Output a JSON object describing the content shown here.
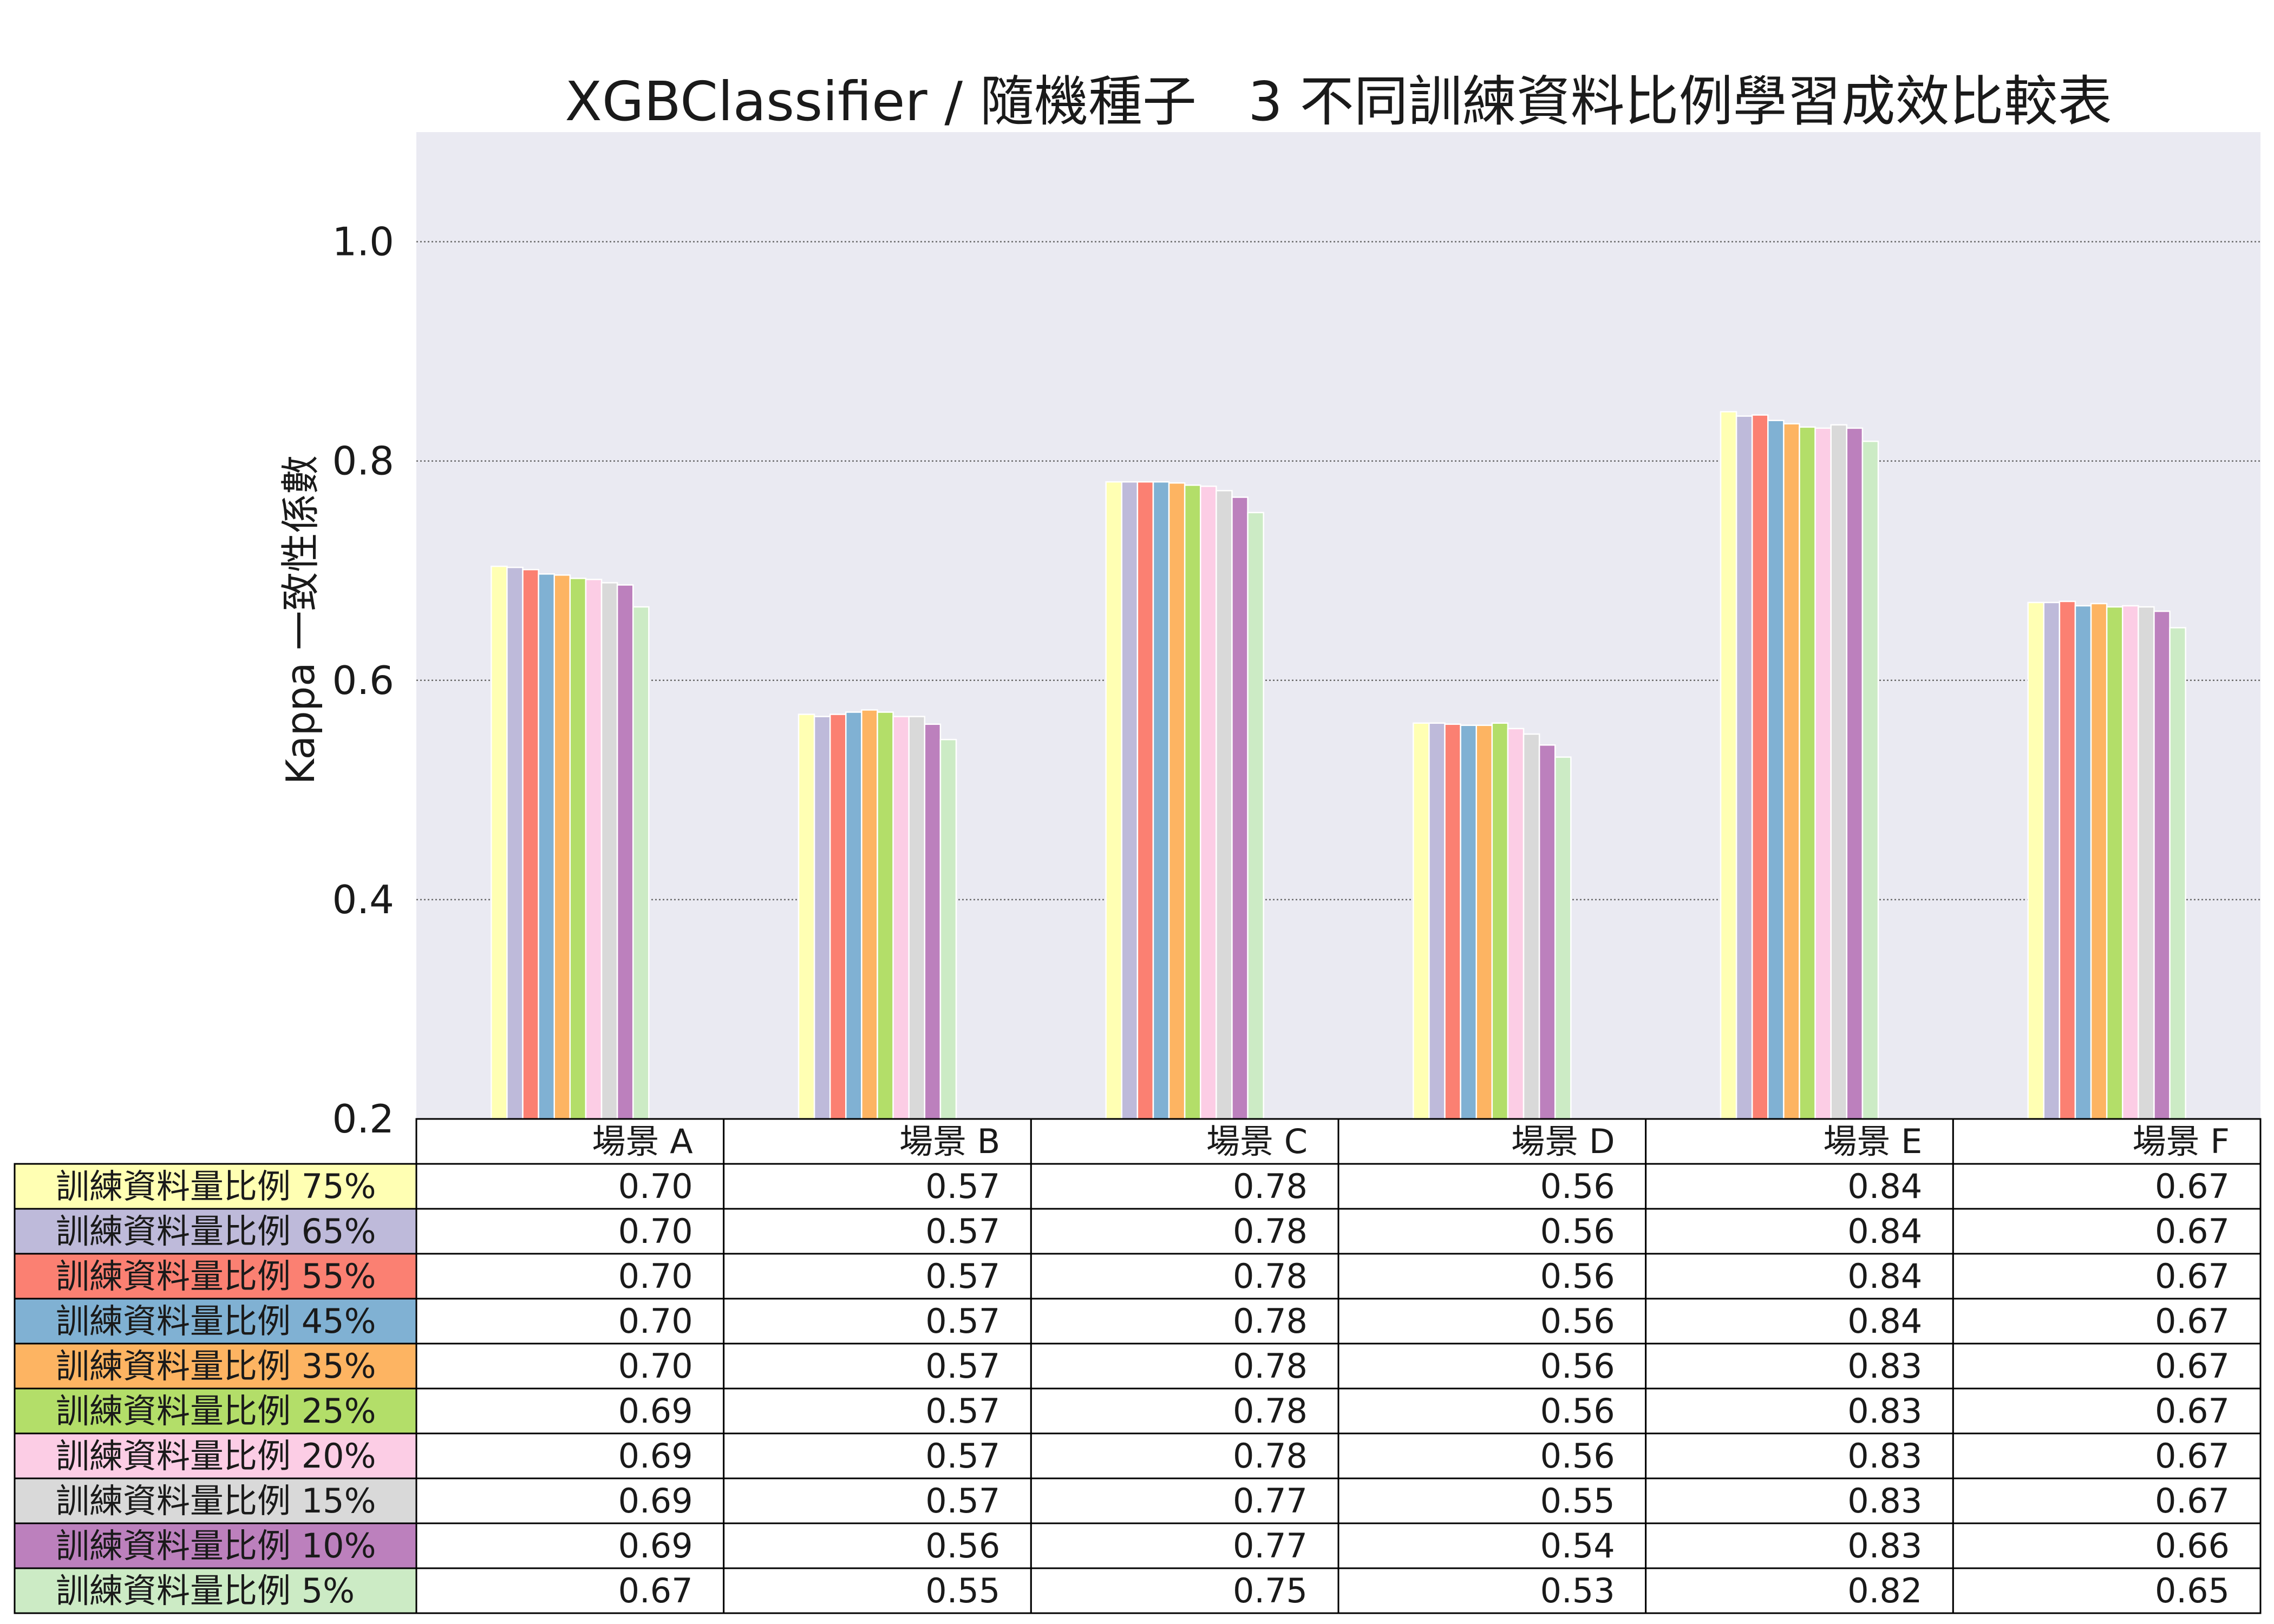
{
  "chart_data": {
    "type": "bar",
    "title": "XGBClassifier / 隨機種子   3 不同訓練資料比例學習成效比較表",
    "xlabel": "",
    "ylabel": "Kappa 一致性係數",
    "categories": [
      "場景 A",
      "場景 B",
      "場景 C",
      "場景 D",
      "場景 E",
      "場景 F"
    ],
    "ylim": [
      0.2,
      1.1
    ],
    "yticks": [
      0.2,
      0.4,
      0.6,
      0.8,
      1.0
    ],
    "ytick_labels": [
      "0.2",
      "0.4",
      "0.6",
      "0.8",
      "1.0"
    ],
    "grid": true,
    "legend": "bottom",
    "plot_background": "#eaeaf2",
    "series": [
      {
        "name": "訓練資料量比例 75%",
        "color": "#ffffb3",
        "values": [
          0.704,
          0.569,
          0.781,
          0.561,
          0.845,
          0.671
        ],
        "table_values": [
          "0.70",
          "0.57",
          "0.78",
          "0.56",
          "0.84",
          "0.67"
        ]
      },
      {
        "name": "訓練資料量比例 65%",
        "color": "#bebada",
        "values": [
          0.703,
          0.567,
          0.781,
          0.561,
          0.841,
          0.671
        ],
        "table_values": [
          "0.70",
          "0.57",
          "0.78",
          "0.56",
          "0.84",
          "0.67"
        ]
      },
      {
        "name": "訓練資料量比例 55%",
        "color": "#fb8072",
        "values": [
          0.701,
          0.569,
          0.781,
          0.56,
          0.842,
          0.672
        ],
        "table_values": [
          "0.70",
          "0.57",
          "0.78",
          "0.56",
          "0.84",
          "0.67"
        ]
      },
      {
        "name": "訓練資料量比例 45%",
        "color": "#80b1d3",
        "values": [
          0.697,
          0.571,
          0.781,
          0.559,
          0.837,
          0.668
        ],
        "table_values": [
          "0.70",
          "0.57",
          "0.78",
          "0.56",
          "0.84",
          "0.67"
        ]
      },
      {
        "name": "訓練資料量比例 35%",
        "color": "#fdb462",
        "values": [
          0.696,
          0.573,
          0.78,
          0.559,
          0.834,
          0.67
        ],
        "table_values": [
          "0.70",
          "0.57",
          "0.78",
          "0.56",
          "0.83",
          "0.67"
        ]
      },
      {
        "name": "訓練資料量比例 25%",
        "color": "#b3de69",
        "values": [
          0.693,
          0.571,
          0.778,
          0.561,
          0.831,
          0.667
        ],
        "table_values": [
          "0.69",
          "0.57",
          "0.78",
          "0.56",
          "0.83",
          "0.67"
        ]
      },
      {
        "name": "訓練資料量比例 20%",
        "color": "#fccde5",
        "values": [
          0.692,
          0.567,
          0.777,
          0.556,
          0.83,
          0.668
        ],
        "table_values": [
          "0.69",
          "0.57",
          "0.78",
          "0.56",
          "0.83",
          "0.67"
        ]
      },
      {
        "name": "訓練資料量比例 15%",
        "color": "#d9d9d9",
        "values": [
          0.689,
          0.567,
          0.773,
          0.551,
          0.833,
          0.667
        ],
        "table_values": [
          "0.69",
          "0.57",
          "0.77",
          "0.55",
          "0.83",
          "0.67"
        ]
      },
      {
        "name": "訓練資料量比例 10%",
        "color": "#bc80bd",
        "values": [
          0.687,
          0.56,
          0.767,
          0.541,
          0.83,
          0.663
        ],
        "table_values": [
          "0.69",
          "0.56",
          "0.77",
          "0.54",
          "0.83",
          "0.66"
        ]
      },
      {
        "name": "訓練資料量比例 5%",
        "color": "#ccebc5",
        "values": [
          0.667,
          0.546,
          0.753,
          0.53,
          0.818,
          0.648
        ],
        "table_values": [
          "0.67",
          "0.55",
          "0.75",
          "0.53",
          "0.82",
          "0.65"
        ]
      }
    ]
  }
}
